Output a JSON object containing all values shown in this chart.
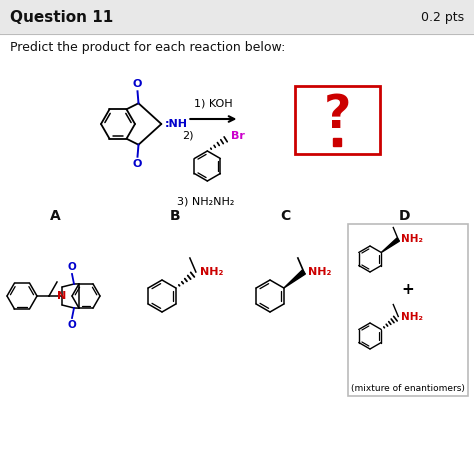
{
  "title_left": "Question 11",
  "title_right": "0.2 pts",
  "subtitle": "Predict the product for each reaction below:",
  "bg_color": "#f0f0f0",
  "header_bg": "#e8e8e8",
  "body_bg": "#ffffff",
  "answer_labels": [
    "A",
    "B",
    "C",
    "D"
  ],
  "question_mark_color": "#cc0000",
  "box_color_question": "#cc0000",
  "br_color": "#cc00cc",
  "nh_color": "#0000cc",
  "o_color": "#0000cc",
  "n_color": "#cc0000",
  "nh2_color": "#cc0000",
  "mixture_text": "(mixture of enantiomers)",
  "title_fontsize": 11,
  "subtitle_fontsize": 9,
  "label_fontsize": 10
}
